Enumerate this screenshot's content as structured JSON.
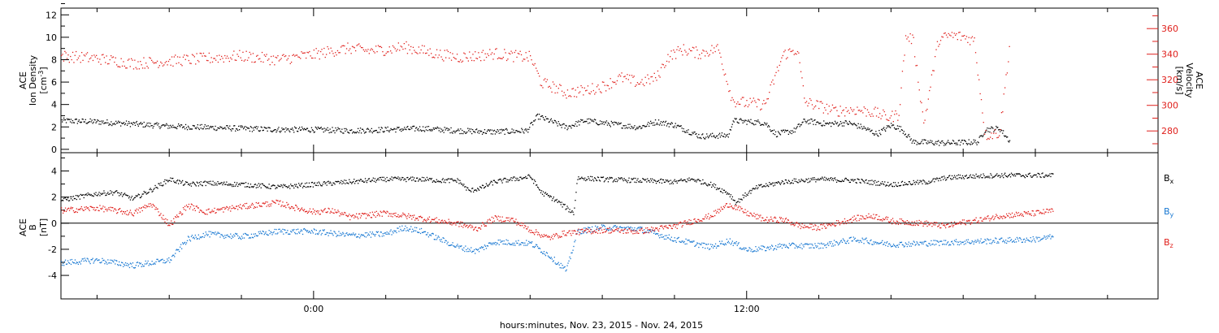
{
  "chart_data": [
    {
      "type": "scatter",
      "panel": "density-velocity",
      "title": "",
      "ylabel_left": [
        "ACE",
        "Ion Density",
        "[cm-3]"
      ],
      "ylabel_right": [
        "ACE",
        "Velocity",
        "[km/s]"
      ],
      "left_axis": {
        "range": [
          -0.3,
          12.6
        ],
        "ticks": [
          0,
          2,
          4,
          6,
          8,
          10,
          12
        ],
        "color": "#000000"
      },
      "right_axis": {
        "range": [
          263,
          376
        ],
        "ticks": [
          280,
          300,
          320,
          340,
          360
        ],
        "color": "#e0201c"
      },
      "series": [
        {
          "axis": "left",
          "color": "#000000",
          "keypoints": [
            [
              -7.0,
              2.6
            ],
            [
              -6.0,
              2.5
            ],
            [
              -5.0,
              2.3
            ],
            [
              -4.0,
              2.1
            ],
            [
              -3.0,
              2.0
            ],
            [
              -2.0,
              1.9
            ],
            [
              -1.0,
              1.8
            ],
            [
              0.0,
              1.8
            ],
            [
              1.0,
              1.7
            ],
            [
              2.0,
              1.8
            ],
            [
              3.0,
              1.9
            ],
            [
              4.0,
              1.7
            ],
            [
              5.0,
              1.6
            ],
            [
              5.9,
              1.7
            ],
            [
              6.2,
              3.0
            ],
            [
              6.6,
              2.5
            ],
            [
              7.0,
              2.0
            ],
            [
              7.5,
              2.6
            ],
            [
              8.0,
              2.4
            ],
            [
              8.5,
              2.2
            ],
            [
              9.0,
              2.0
            ],
            [
              9.5,
              2.5
            ],
            [
              10.0,
              2.2
            ],
            [
              10.7,
              1.2
            ],
            [
              11.5,
              1.3
            ],
            [
              11.6,
              2.6
            ],
            [
              12.5,
              2.4
            ],
            [
              12.8,
              1.4
            ],
            [
              13.3,
              1.7
            ],
            [
              13.6,
              2.6
            ],
            [
              14.2,
              2.3
            ],
            [
              14.8,
              2.4
            ],
            [
              15.2,
              2.0
            ],
            [
              15.6,
              1.4
            ],
            [
              16.0,
              2.2
            ],
            [
              16.3,
              1.8
            ],
            [
              16.6,
              0.7
            ],
            [
              17.5,
              0.6
            ],
            [
              18.4,
              0.7
            ],
            [
              18.6,
              1.8
            ],
            [
              19.0,
              1.9
            ],
            [
              19.3,
              0.7
            ]
          ]
        },
        {
          "axis": "right",
          "color": "#e0201c",
          "keypoints": [
            [
              -7.0,
              339
            ],
            [
              -6.0,
              337
            ],
            [
              -5.0,
              333
            ],
            [
              -4.0,
              335
            ],
            [
              -3.0,
              337
            ],
            [
              -2.0,
              339
            ],
            [
              -1.0,
              336
            ],
            [
              0.0,
              340
            ],
            [
              0.5,
              343
            ],
            [
              1.0,
              345
            ],
            [
              1.5,
              343
            ],
            [
              2.0,
              344
            ],
            [
              2.5,
              346
            ],
            [
              3.0,
              343
            ],
            [
              3.5,
              340
            ],
            [
              4.0,
              338
            ],
            [
              4.5,
              339
            ],
            [
              5.0,
              341
            ],
            [
              5.5,
              339
            ],
            [
              6.0,
              338
            ],
            [
              6.3,
              318
            ],
            [
              6.6,
              315
            ],
            [
              7.0,
              310
            ],
            [
              7.5,
              312
            ],
            [
              8.0,
              315
            ],
            [
              8.5,
              322
            ],
            [
              9.0,
              318
            ],
            [
              9.5,
              322
            ],
            [
              9.8,
              338
            ],
            [
              10.2,
              344
            ],
            [
              10.7,
              341
            ],
            [
              11.2,
              345
            ],
            [
              11.6,
              304
            ],
            [
              12.0,
              302
            ],
            [
              12.5,
              301
            ],
            [
              13.0,
              340
            ],
            [
              13.4,
              344
            ],
            [
              13.6,
              303
            ],
            [
              14.0,
              300
            ],
            [
              14.4,
              296
            ],
            [
              15.0,
              297
            ],
            [
              15.5,
              295
            ],
            [
              15.9,
              291
            ],
            [
              16.2,
              293
            ],
            [
              16.4,
              354
            ],
            [
              16.6,
              352
            ],
            [
              16.9,
              286
            ],
            [
              17.3,
              351
            ],
            [
              17.6,
              355
            ],
            [
              18.0,
              354
            ],
            [
              18.3,
              351
            ],
            [
              18.6,
              277
            ],
            [
              19.0,
              279
            ],
            [
              19.3,
              353
            ]
          ]
        }
      ]
    },
    {
      "type": "scatter",
      "panel": "magnetic-field",
      "title": "",
      "ylabel": [
        "ACE",
        "B",
        "[nT]"
      ],
      "yaxis": {
        "range": [
          -5.8,
          5.4
        ],
        "ticks": [
          -4,
          -2,
          0,
          2,
          4
        ]
      },
      "legend_placement": "right",
      "series": [
        {
          "name": "Bx",
          "color": "#000000",
          "keypoints": [
            [
              -7.0,
              1.8
            ],
            [
              -6.0,
              2.3
            ],
            [
              -5.5,
              2.4
            ],
            [
              -5.0,
              1.9
            ],
            [
              -4.5,
              2.6
            ],
            [
              -4.0,
              3.4
            ],
            [
              -3.5,
              3.0
            ],
            [
              -3.0,
              3.1
            ],
            [
              -2.0,
              3.0
            ],
            [
              -1.0,
              2.8
            ],
            [
              0.0,
              3.0
            ],
            [
              1.0,
              3.2
            ],
            [
              2.0,
              3.4
            ],
            [
              3.0,
              3.4
            ],
            [
              3.5,
              3.3
            ],
            [
              4.0,
              3.3
            ],
            [
              4.3,
              2.5
            ],
            [
              4.7,
              2.8
            ],
            [
              5.0,
              3.2
            ],
            [
              5.5,
              3.4
            ],
            [
              6.0,
              3.6
            ],
            [
              6.3,
              2.4
            ],
            [
              6.7,
              1.8
            ],
            [
              7.0,
              1.2
            ],
            [
              7.2,
              0.8
            ],
            [
              7.3,
              3.5
            ],
            [
              8.0,
              3.4
            ],
            [
              9.0,
              3.3
            ],
            [
              10.0,
              3.2
            ],
            [
              10.5,
              3.4
            ],
            [
              11.0,
              3.0
            ],
            [
              11.5,
              2.3
            ],
            [
              11.7,
              1.6
            ],
            [
              12.0,
              2.3
            ],
            [
              12.3,
              2.8
            ],
            [
              13.0,
              3.2
            ],
            [
              14.0,
              3.4
            ],
            [
              15.0,
              3.3
            ],
            [
              16.0,
              3.0
            ],
            [
              17.0,
              3.2
            ],
            [
              17.5,
              3.5
            ],
            [
              18.0,
              3.6
            ],
            [
              19.0,
              3.7
            ],
            [
              20.0,
              3.7
            ],
            [
              20.5,
              3.7
            ]
          ]
        },
        {
          "name": "By",
          "color": "#1878d2",
          "keypoints": [
            [
              -7.0,
              -3.0
            ],
            [
              -6.0,
              -2.8
            ],
            [
              -5.0,
              -3.2
            ],
            [
              -4.0,
              -2.8
            ],
            [
              -3.5,
              -1.2
            ],
            [
              -3.0,
              -0.8
            ],
            [
              -2.0,
              -1.0
            ],
            [
              -1.0,
              -0.6
            ],
            [
              0.0,
              -0.6
            ],
            [
              1.0,
              -0.9
            ],
            [
              2.0,
              -0.8
            ],
            [
              2.5,
              -0.3
            ],
            [
              3.0,
              -0.6
            ],
            [
              4.0,
              -1.8
            ],
            [
              4.5,
              -2.1
            ],
            [
              5.0,
              -1.4
            ],
            [
              6.0,
              -1.5
            ],
            [
              6.5,
              -2.4
            ],
            [
              7.0,
              -3.6
            ],
            [
              7.3,
              -0.6
            ],
            [
              8.0,
              -0.3
            ],
            [
              9.0,
              -0.4
            ],
            [
              10.0,
              -1.2
            ],
            [
              11.0,
              -1.8
            ],
            [
              11.5,
              -1.3
            ],
            [
              12.0,
              -2.0
            ],
            [
              12.5,
              -1.9
            ],
            [
              13.0,
              -1.7
            ],
            [
              14.0,
              -1.7
            ],
            [
              15.0,
              -1.2
            ],
            [
              16.0,
              -1.6
            ],
            [
              17.0,
              -1.5
            ],
            [
              18.0,
              -1.4
            ],
            [
              19.0,
              -1.3
            ],
            [
              20.0,
              -1.2
            ],
            [
              20.5,
              -1.0
            ]
          ]
        },
        {
          "name": "Bz",
          "color": "#e0201c",
          "keypoints": [
            [
              -7.0,
              1.0
            ],
            [
              -6.0,
              1.2
            ],
            [
              -5.0,
              0.8
            ],
            [
              -4.5,
              1.5
            ],
            [
              -4.0,
              -0.1
            ],
            [
              -3.5,
              1.4
            ],
            [
              -3.0,
              0.9
            ],
            [
              -2.0,
              1.3
            ],
            [
              -1.0,
              1.6
            ],
            [
              -0.5,
              1.2
            ],
            [
              0.0,
              0.9
            ],
            [
              0.5,
              1.0
            ],
            [
              1.0,
              0.5
            ],
            [
              2.0,
              0.8
            ],
            [
              3.0,
              0.4
            ],
            [
              4.0,
              0.0
            ],
            [
              4.5,
              -0.4
            ],
            [
              5.0,
              0.4
            ],
            [
              5.5,
              0.3
            ],
            [
              6.0,
              -0.5
            ],
            [
              6.5,
              -1.1
            ],
            [
              7.0,
              -0.7
            ],
            [
              8.0,
              -0.5
            ],
            [
              9.0,
              -0.6
            ],
            [
              10.0,
              -0.2
            ],
            [
              11.0,
              0.6
            ],
            [
              11.5,
              1.5
            ],
            [
              12.0,
              0.8
            ],
            [
              12.5,
              0.3
            ],
            [
              13.0,
              0.3
            ],
            [
              13.5,
              -0.2
            ],
            [
              14.0,
              -0.3
            ],
            [
              15.0,
              0.4
            ],
            [
              15.5,
              0.6
            ],
            [
              16.0,
              0.2
            ],
            [
              17.0,
              0.0
            ],
            [
              17.5,
              -0.2
            ],
            [
              18.0,
              0.1
            ],
            [
              18.5,
              0.3
            ],
            [
              19.0,
              0.6
            ],
            [
              20.0,
              0.8
            ],
            [
              20.5,
              1.0
            ]
          ]
        }
      ]
    }
  ],
  "x_axis": {
    "label": "hours:minutes, Nov. 23, 2015 - Nov. 24, 2015",
    "range_hours": [
      -7,
      23.4
    ],
    "labeled_ticks": [
      {
        "x": 0,
        "label": "0:00"
      },
      {
        "x": 12,
        "label": "12:00"
      }
    ],
    "minor_tick_every_hours": 2
  },
  "legend": {
    "bx": "B",
    "bx_sub": "x",
    "by": "B",
    "by_sub": "y",
    "bz": "B",
    "bz_sub": "z"
  },
  "labels": {
    "p1_left": [
      "ACE",
      "Ion Density"
    ],
    "p1_left_unit": "[cm",
    "p1_left_unit_sup": "-3",
    "p1_left_unit_end": "]",
    "p1_right": [
      "ACE",
      "Velocity",
      "[km/s]"
    ],
    "p2_left": [
      "ACE",
      "B",
      "[nT]"
    ]
  },
  "colors": {
    "black": "#000000",
    "red": "#e0201c",
    "blue": "#1878d2",
    "frame": "#000000"
  }
}
